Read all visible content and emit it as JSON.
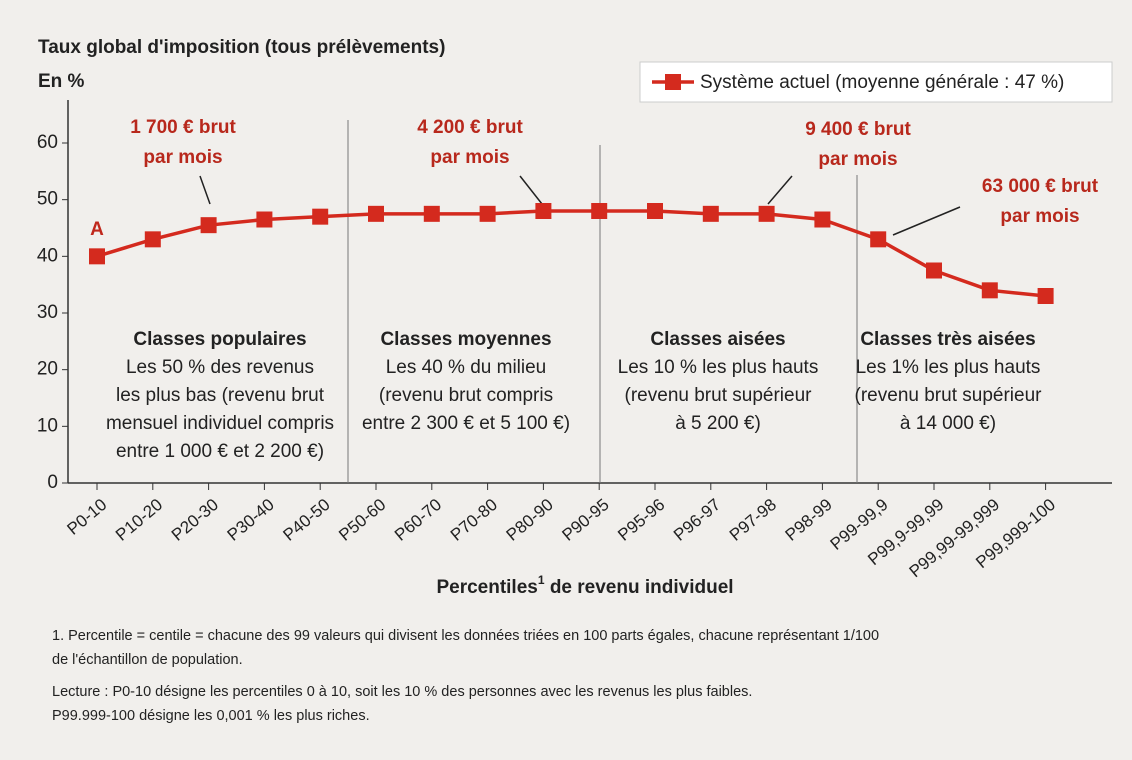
{
  "chart_data": {
    "type": "line",
    "title": "Taux global d'imposition (tous prélèvements)",
    "ylabel": "En %",
    "xlabel": [
      "Percentiles",
      "1",
      " de revenu individuel"
    ],
    "categories": [
      "P0-10",
      "P10-20",
      "P20-30",
      "P30-40",
      "P40-50",
      "P50-60",
      "P60-70",
      "P70-80",
      "P80-90",
      "P90-95",
      "P95-96",
      "P96-97",
      "P97-98",
      "P98-99",
      "P99-99,9",
      "P99,9-99,99",
      "P99,99-99,999",
      "P99,999-100"
    ],
    "series": [
      {
        "name": "Système actuel (moyenne générale : 47 %)",
        "color": "#d42a1e",
        "values": [
          40,
          43,
          45.5,
          46.5,
          47,
          47.5,
          47.5,
          47.5,
          48,
          48,
          48,
          47.5,
          47.5,
          46.5,
          43,
          37.5,
          34,
          33
        ]
      }
    ],
    "ylim": [
      0,
      60
    ],
    "yticks": [
      0,
      10,
      20,
      30,
      40,
      50,
      60
    ],
    "legend": "top-right",
    "point_label": "A",
    "annotations": [
      [
        "1 700 € brut",
        "par mois"
      ],
      [
        "4 200 € brut",
        "par mois"
      ],
      [
        "9 400 € brut",
        "par mois"
      ],
      [
        "63 000 € brut",
        "par mois"
      ]
    ],
    "classes": [
      [
        "Classes populaires",
        "Les 50 % des revenus",
        "les plus bas (revenu brut",
        "mensuel individuel compris",
        "entre 1 000 € et 2 200 €)"
      ],
      [
        "Classes moyennes",
        "Les 40 % du milieu",
        "(revenu brut compris",
        "entre 2 300 € et 5 100 €)"
      ],
      [
        "Classes aisées",
        "Les 10 % les plus hauts",
        "(revenu brut supérieur",
        "à 5 200 €)"
      ],
      [
        "Classes très aisées",
        "Les 1% les plus hauts",
        "(revenu brut supérieur",
        "à 14 000 €)"
      ]
    ],
    "footnotes": [
      "1. Percentile = centile = chacune des 99 valeurs qui divisent les données triées en 100 parts égales, chacune représentant 1/100",
      "de l'échantillon de population.",
      "Lecture : P0-10 désigne les percentiles 0 à 10, soit les 10 % des personnes avec les revenus les plus faibles.",
      "P99.999-100 désigne les 0,001 % les plus riches."
    ]
  }
}
